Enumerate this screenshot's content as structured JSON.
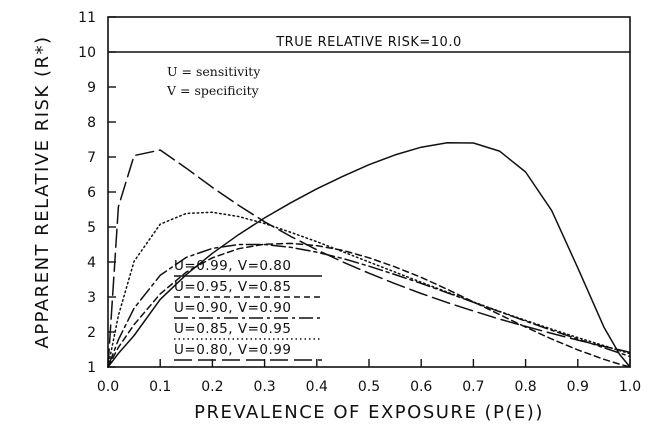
{
  "chart_data": {
    "type": "line",
    "xlabel": "PREVALENCE OF EXPOSURE (P(E))",
    "ylabel": "APPARENT RELATIVE RISK (R*)",
    "xlim": [
      0.0,
      1.0
    ],
    "ylim": [
      1,
      11
    ],
    "x_ticks": [
      "0.0",
      "0.1",
      "0.2",
      "0.3",
      "0.4",
      "0.5",
      "0.6",
      "0.7",
      "0.8",
      "0.9",
      "1.0"
    ],
    "y_ticks": [
      "1",
      "2",
      "3",
      "4",
      "5",
      "6",
      "7",
      "8",
      "9",
      "10",
      "11"
    ],
    "grid": false,
    "reference_line": {
      "y": 10,
      "label": "TRUE RELATIVE RISK=10.0"
    },
    "annotations": [
      "U = sensitivity",
      "V = specificity"
    ],
    "legend_position": "lower-left",
    "x": [
      0.0,
      0.02,
      0.05,
      0.1,
      0.15,
      0.2,
      0.25,
      0.3,
      0.35,
      0.4,
      0.45,
      0.5,
      0.55,
      0.6,
      0.65,
      0.7,
      0.75,
      0.8,
      0.85,
      0.9,
      0.95,
      0.98,
      1.0
    ],
    "series": [
      {
        "name": "U=0.99, V=0.80",
        "dash": "solid",
        "values": [
          1.0,
          1.39,
          1.9,
          2.93,
          3.64,
          4.25,
          4.78,
          5.26,
          5.69,
          6.09,
          6.45,
          6.78,
          7.06,
          7.28,
          7.41,
          7.4,
          7.17,
          6.57,
          5.47,
          3.83,
          2.14,
          1.36,
          1.0
        ]
      },
      {
        "name": "U=0.95, V=0.85",
        "dash": "dashed",
        "values": [
          1.0,
          1.56,
          2.21,
          3.09,
          3.71,
          4.12,
          4.38,
          4.51,
          4.53,
          4.47,
          4.33,
          4.12,
          3.86,
          3.56,
          3.22,
          2.86,
          2.5,
          2.14,
          1.8,
          1.49,
          1.22,
          1.08,
          1.0
        ]
      },
      {
        "name": "U=0.90, V=0.90",
        "dash": "dashdot",
        "values": [
          1.0,
          1.78,
          2.68,
          3.62,
          4.13,
          4.39,
          4.5,
          4.5,
          4.42,
          4.28,
          4.1,
          3.88,
          3.64,
          3.39,
          3.12,
          2.85,
          2.58,
          2.31,
          2.05,
          1.8,
          1.55,
          1.4,
          1.3
        ]
      },
      {
        "name": "U=0.85, V=0.95",
        "dash": "dotted",
        "values": [
          1.0,
          2.47,
          4.02,
          5.08,
          5.39,
          5.42,
          5.3,
          5.1,
          4.85,
          4.58,
          4.29,
          4.0,
          3.71,
          3.42,
          3.14,
          2.86,
          2.59,
          2.33,
          2.08,
          1.84,
          1.61,
          1.47,
          1.38
        ]
      },
      {
        "name": "U=0.80, V=0.99",
        "dash": "longdash",
        "values": [
          1.0,
          5.58,
          7.04,
          7.2,
          6.68,
          6.13,
          5.62,
          5.15,
          4.73,
          4.35,
          4.0,
          3.68,
          3.38,
          3.1,
          2.84,
          2.6,
          2.37,
          2.16,
          1.96,
          1.77,
          1.59,
          1.49,
          1.42
        ]
      }
    ]
  }
}
